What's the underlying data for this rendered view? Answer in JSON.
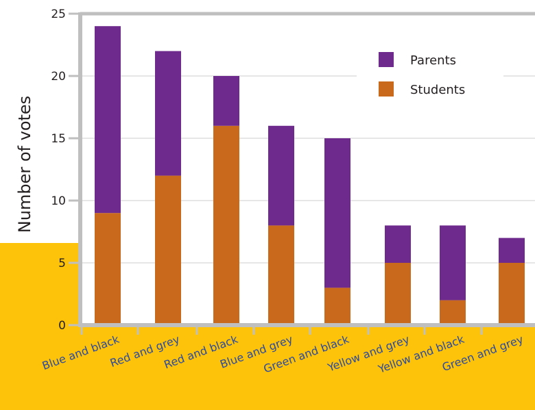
{
  "colors": {
    "parents": "#6e2a8c",
    "students": "#c9691c",
    "band": "#fdc30a",
    "axis": "#bfbfbf",
    "grid": "#e6e6e6",
    "category_text": "#2b4aa0"
  },
  "chart_data": {
    "type": "bar",
    "stacked": true,
    "title": "",
    "xlabel": "",
    "ylabel": "Number of votes",
    "ylim": [
      0,
      25
    ],
    "yticks": [
      0,
      5,
      10,
      15,
      20,
      25
    ],
    "grid": true,
    "legend_position": "top-right",
    "categories": [
      "Blue and black",
      "Red and grey",
      "Red and black",
      "Blue and grey",
      "Green and black",
      "Yellow and grey",
      "Yellow and black",
      "Green and grey"
    ],
    "series": [
      {
        "name": "Students",
        "values": [
          9,
          12,
          16,
          8,
          3,
          5,
          2,
          5
        ]
      },
      {
        "name": "Parents",
        "values": [
          15,
          10,
          4,
          8,
          12,
          3,
          6,
          2
        ]
      }
    ],
    "legend": [
      "Parents",
      "Students"
    ]
  }
}
